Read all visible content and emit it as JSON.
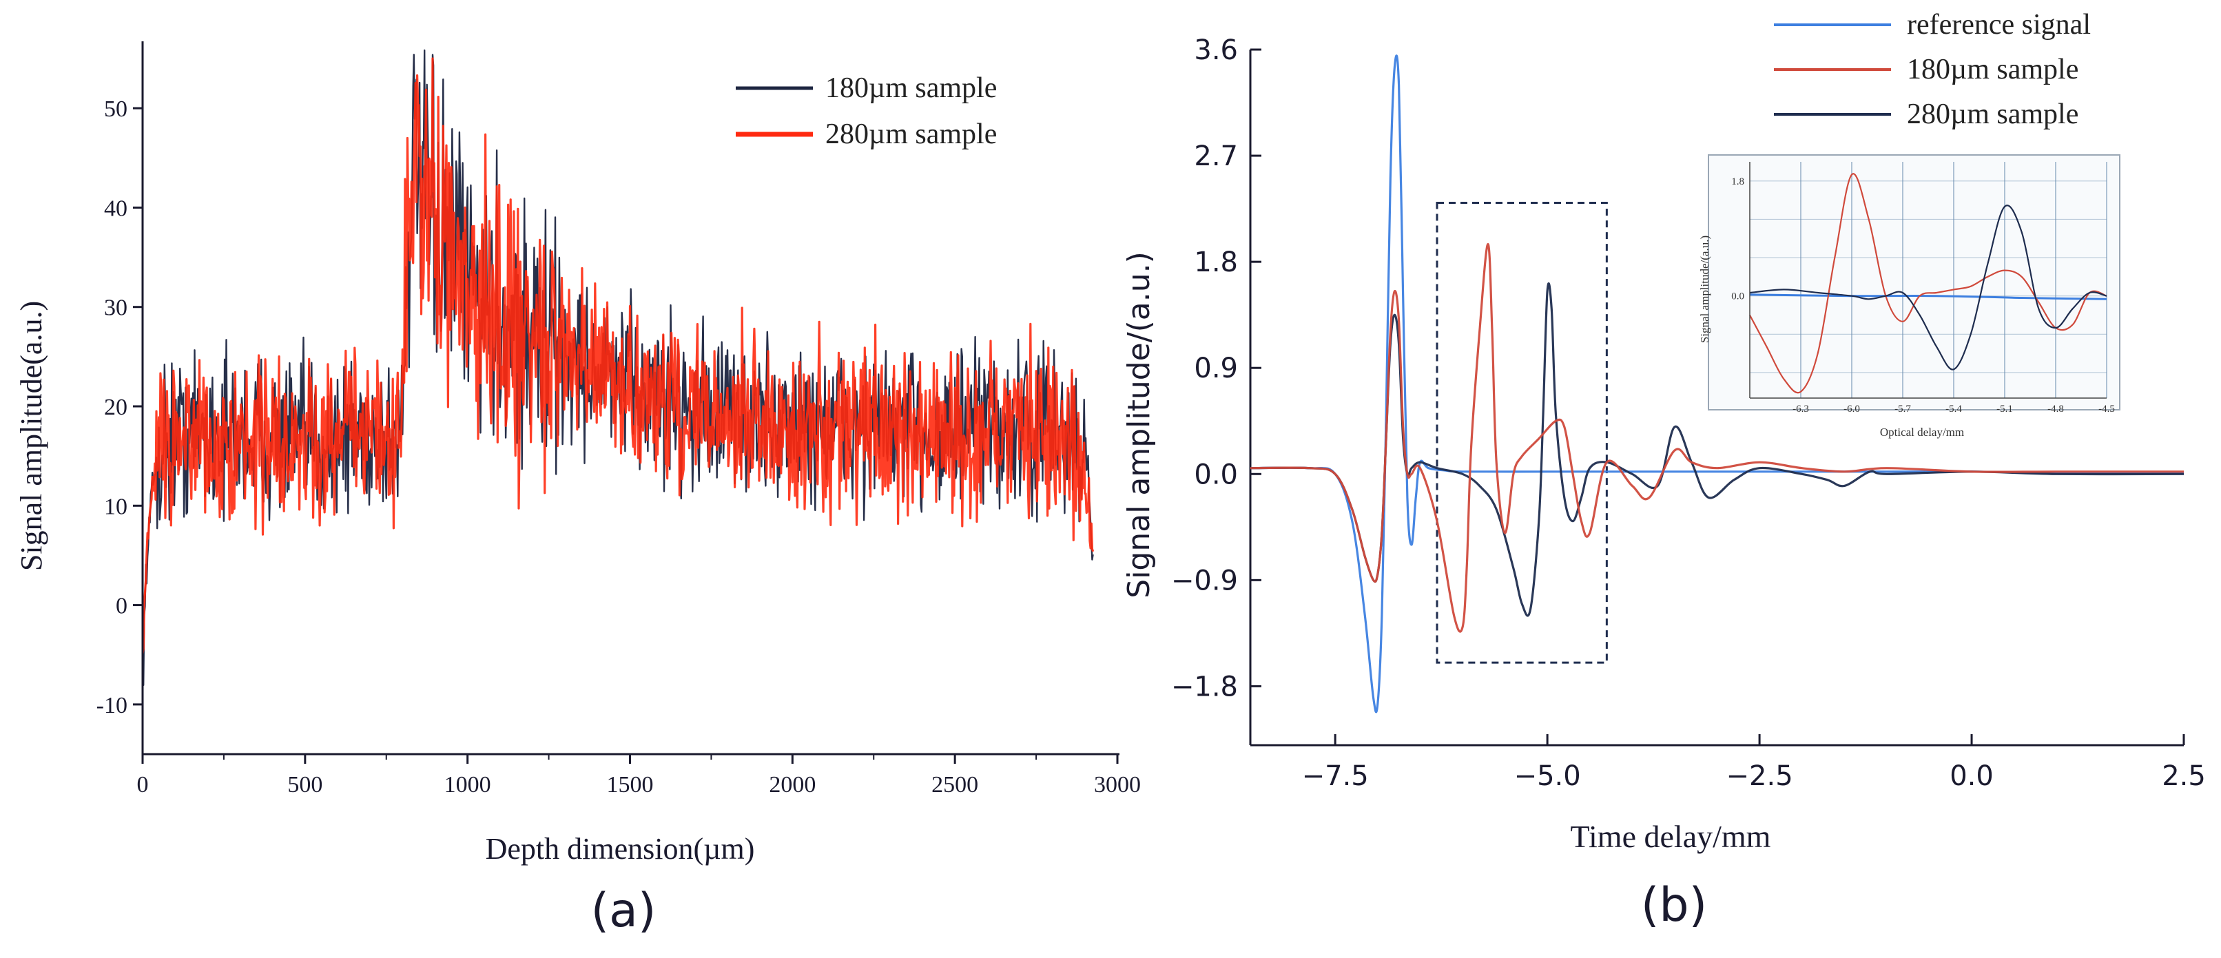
{
  "colors": {
    "axis": "#1a1a2e",
    "s180_a": "#1c2540",
    "s280_a": "#ff2a10",
    "reference": "#3d7fe0",
    "s180_b": "#d04a3c",
    "s280_b": "#1f2d4f",
    "inset_grid": "#6d8fb0"
  },
  "chart_data": [
    {
      "id": "a",
      "type": "line",
      "panel_label": "(a)",
      "title": "",
      "xlabel": "Depth dimension(µm)",
      "ylabel": "Signal amplitude(a.u.)",
      "xlim": [
        0,
        3000
      ],
      "ylim": [
        -15,
        55
      ],
      "xticks": [
        0,
        500,
        1000,
        1500,
        2000,
        2500,
        3000
      ],
      "yticks": [
        -10,
        0,
        10,
        20,
        30,
        40,
        50
      ],
      "legend": {
        "position": "top-right",
        "entries": [
          "180µm sample",
          "280µm sample"
        ]
      },
      "series": [
        {
          "name": "180µm sample",
          "color_key": "s180_a",
          "description": "noisy depth profile; baseline ~17 from 50 to 800 µm, jump at ~810 µm to peak ~48, decaying to ~18 by 1800 µm, flat noisy ~18 until 2900 µm then drop to ~0",
          "x": [
            0,
            10,
            30,
            60,
            100,
            200,
            300,
            400,
            500,
            600,
            700,
            790,
            810,
            830,
            860,
            900,
            1000,
            1100,
            1200,
            1300,
            1400,
            1500,
            1600,
            1700,
            1800,
            1900,
            2000,
            2200,
            2400,
            2600,
            2800,
            2880,
            2910,
            2925
          ],
          "y": [
            -8,
            3,
            12,
            16,
            17,
            17.5,
            17,
            17,
            16.5,
            17,
            17,
            16.5,
            30,
            44,
            42,
            38,
            33,
            29,
            27,
            25,
            23.5,
            22,
            21,
            20,
            19,
            18.5,
            18,
            18,
            17.5,
            17.5,
            17.5,
            16,
            14,
            1
          ]
        },
        {
          "name": "280µm sample",
          "color_key": "s280_a",
          "description": "closely overlapping the 180µm trace with similar noise",
          "x": [
            0,
            10,
            30,
            60,
            100,
            200,
            300,
            400,
            500,
            600,
            700,
            790,
            810,
            830,
            860,
            900,
            1000,
            1100,
            1200,
            1300,
            1400,
            1500,
            1600,
            1700,
            1800,
            1900,
            2000,
            2200,
            2400,
            2600,
            2800,
            2880,
            2910,
            2925
          ],
          "y": [
            -5,
            4,
            13,
            16.5,
            17,
            17,
            17.5,
            16.5,
            16,
            17,
            17.5,
            17,
            31,
            45,
            41,
            37,
            32,
            28.5,
            26.5,
            24.5,
            23,
            21.5,
            20.5,
            19.5,
            19,
            18.5,
            18,
            18,
            17,
            17.5,
            17,
            15,
            10,
            7
          ]
        }
      ]
    },
    {
      "id": "b",
      "type": "line",
      "panel_label": "(b)",
      "title": "",
      "xlabel": "Time delay/mm",
      "ylabel": "Signal amplitude/(a.u.)",
      "xlim": [
        -8.5,
        2.5
      ],
      "ylim": [
        -2.3,
        3.6
      ],
      "xticks": [
        -7.5,
        -5.0,
        -2.5,
        0.0,
        2.5
      ],
      "xtick_labels": [
        "−7.5",
        "−5.0",
        "−2.5",
        "0.0",
        "2.5"
      ],
      "yticks": [
        -1.8,
        -0.9,
        0.0,
        0.9,
        1.8,
        2.7,
        3.6
      ],
      "ytick_labels": [
        "−1.8",
        "−0.9",
        "0.0",
        "0.9",
        "1.8",
        "2.7",
        "3.6"
      ],
      "legend": {
        "position": "top-right",
        "entries": [
          "reference signal",
          "180µm sample",
          "280µm sample"
        ]
      },
      "highlight_box": {
        "x_range": [
          -6.3,
          -4.3
        ],
        "y_range": [
          -1.6,
          2.3
        ]
      },
      "series": [
        {
          "name": "reference signal",
          "color_key": "reference",
          "x": [
            -8.5,
            -7.8,
            -7.5,
            -7.3,
            -7.15,
            -7.05,
            -7.0,
            -6.95,
            -6.9,
            -6.85,
            -6.8,
            -6.75,
            -6.7,
            -6.65,
            -6.6,
            -6.55,
            -6.5,
            -6.4,
            -6.2,
            -6.0,
            -5.0,
            -4.0,
            -3.0,
            -2.0,
            -1.0,
            0.0,
            1.0,
            2.5
          ],
          "y": [
            0.05,
            0.05,
            0.0,
            -0.4,
            -1.2,
            -1.9,
            -1.95,
            -1.2,
            0.5,
            2.5,
            3.45,
            3.3,
            1.5,
            -0.2,
            -0.6,
            -0.2,
            0.1,
            0.05,
            0.03,
            0.02,
            0.02,
            0.02,
            0.02,
            0.02,
            0.02,
            0.02,
            0.01,
            0.01
          ]
        },
        {
          "name": "180µm sample",
          "color_key": "s180_b",
          "x": [
            -8.5,
            -7.8,
            -7.5,
            -7.3,
            -7.15,
            -7.05,
            -7.0,
            -6.95,
            -6.9,
            -6.85,
            -6.8,
            -6.75,
            -6.7,
            -6.65,
            -6.6,
            -6.5,
            -6.3,
            -6.1,
            -6.0,
            -5.95,
            -5.9,
            -5.8,
            -5.7,
            -5.65,
            -5.6,
            -5.5,
            -5.4,
            -5.3,
            -5.1,
            -4.9,
            -4.8,
            -4.7,
            -4.6,
            -4.5,
            -4.3,
            -4.0,
            -3.8,
            -3.5,
            -3.3,
            -3.0,
            -2.5,
            -2.0,
            -1.5,
            -1.0,
            0.0,
            1.0,
            2.5
          ],
          "y": [
            0.05,
            0.05,
            0.0,
            -0.3,
            -0.7,
            -0.9,
            -0.85,
            -0.5,
            0.3,
            1.2,
            1.55,
            1.3,
            0.4,
            0.0,
            0.0,
            0.05,
            -0.4,
            -1.2,
            -1.3,
            -0.8,
            0.2,
            1.2,
            1.95,
            1.2,
            0.1,
            -0.5,
            0.0,
            0.15,
            0.3,
            0.45,
            0.4,
            0.0,
            -0.4,
            -0.5,
            0.1,
            -0.1,
            -0.2,
            0.2,
            0.1,
            0.05,
            0.1,
            0.05,
            0.02,
            0.05,
            0.02,
            0.02,
            0.02
          ]
        },
        {
          "name": "280µm sample",
          "color_key": "s280_b",
          "x": [
            -8.5,
            -7.8,
            -7.5,
            -7.3,
            -7.15,
            -7.05,
            -7.0,
            -6.95,
            -6.9,
            -6.85,
            -6.8,
            -6.75,
            -6.7,
            -6.65,
            -6.6,
            -6.5,
            -6.3,
            -6.0,
            -5.8,
            -5.6,
            -5.4,
            -5.3,
            -5.2,
            -5.1,
            -5.05,
            -5.0,
            -4.95,
            -4.9,
            -4.8,
            -4.7,
            -4.6,
            -4.5,
            -4.3,
            -4.0,
            -3.7,
            -3.5,
            -3.3,
            -3.1,
            -2.8,
            -2.5,
            -2.0,
            -1.7,
            -1.5,
            -1.2,
            -1.0,
            0.0,
            1.0,
            2.5
          ],
          "y": [
            0.05,
            0.05,
            0.0,
            -0.3,
            -0.7,
            -0.9,
            -0.85,
            -0.5,
            0.3,
            1.1,
            1.35,
            1.1,
            0.3,
            0.0,
            0.05,
            0.1,
            0.05,
            0.0,
            -0.1,
            -0.3,
            -0.8,
            -1.1,
            -1.15,
            -0.4,
            0.5,
            1.55,
            1.4,
            0.5,
            -0.2,
            -0.4,
            -0.2,
            0.05,
            0.1,
            0.0,
            -0.1,
            0.4,
            0.1,
            -0.2,
            -0.05,
            0.05,
            0.0,
            -0.05,
            -0.1,
            0.02,
            0.0,
            0.02,
            0.0,
            0.0
          ]
        }
      ],
      "inset": {
        "xlabel": "Optical delay/mm",
        "ylabel": "Signal amplitude/(a.u.)",
        "xlim": [
          -6.6,
          -4.5
        ],
        "ylim": [
          -1.6,
          2.1
        ],
        "xticks": [
          -6.3,
          -6.0,
          -5.7,
          -5.4,
          -5.1,
          -4.8,
          -4.5
        ],
        "xtick_labels": [
          "-6.3",
          "-6.0",
          "-5.7",
          "-5.4",
          "-5.1",
          "-4.8",
          "-4.5"
        ],
        "yticks": [
          0.0,
          1.8
        ],
        "ytick_labels": [
          "0.0",
          "1.8"
        ],
        "series": [
          {
            "name": "reference signal",
            "color_key": "reference",
            "x": [
              -6.6,
              -6.0,
              -5.5,
              -5.0,
              -4.5
            ],
            "y": [
              0.02,
              0.0,
              0.0,
              -0.03,
              -0.05
            ]
          },
          {
            "name": "180µm sample",
            "color_key": "s180_b",
            "x": [
              -6.6,
              -6.5,
              -6.4,
              -6.3,
              -6.2,
              -6.1,
              -6.0,
              -5.9,
              -5.8,
              -5.7,
              -5.6,
              -5.5,
              -5.4,
              -5.3,
              -5.2,
              -5.1,
              -5.0,
              -4.9,
              -4.8,
              -4.7,
              -4.6,
              -4.5
            ],
            "y": [
              -0.3,
              -0.8,
              -1.3,
              -1.5,
              -0.9,
              0.6,
              1.9,
              1.2,
              0.0,
              -0.4,
              0.0,
              0.05,
              0.1,
              0.15,
              0.3,
              0.4,
              0.3,
              -0.1,
              -0.5,
              -0.45,
              0.05,
              0.0
            ]
          },
          {
            "name": "280µm sample",
            "color_key": "s280_b",
            "x": [
              -6.6,
              -6.4,
              -6.2,
              -6.0,
              -5.9,
              -5.8,
              -5.7,
              -5.6,
              -5.5,
              -5.4,
              -5.3,
              -5.2,
              -5.1,
              -5.0,
              -4.9,
              -4.8,
              -4.7,
              -4.6,
              -4.5
            ],
            "y": [
              0.05,
              0.1,
              0.05,
              0.0,
              -0.05,
              0.0,
              0.05,
              -0.3,
              -0.8,
              -1.15,
              -0.6,
              0.5,
              1.4,
              1.0,
              -0.2,
              -0.5,
              -0.2,
              0.05,
              0.0
            ]
          }
        ]
      }
    }
  ]
}
